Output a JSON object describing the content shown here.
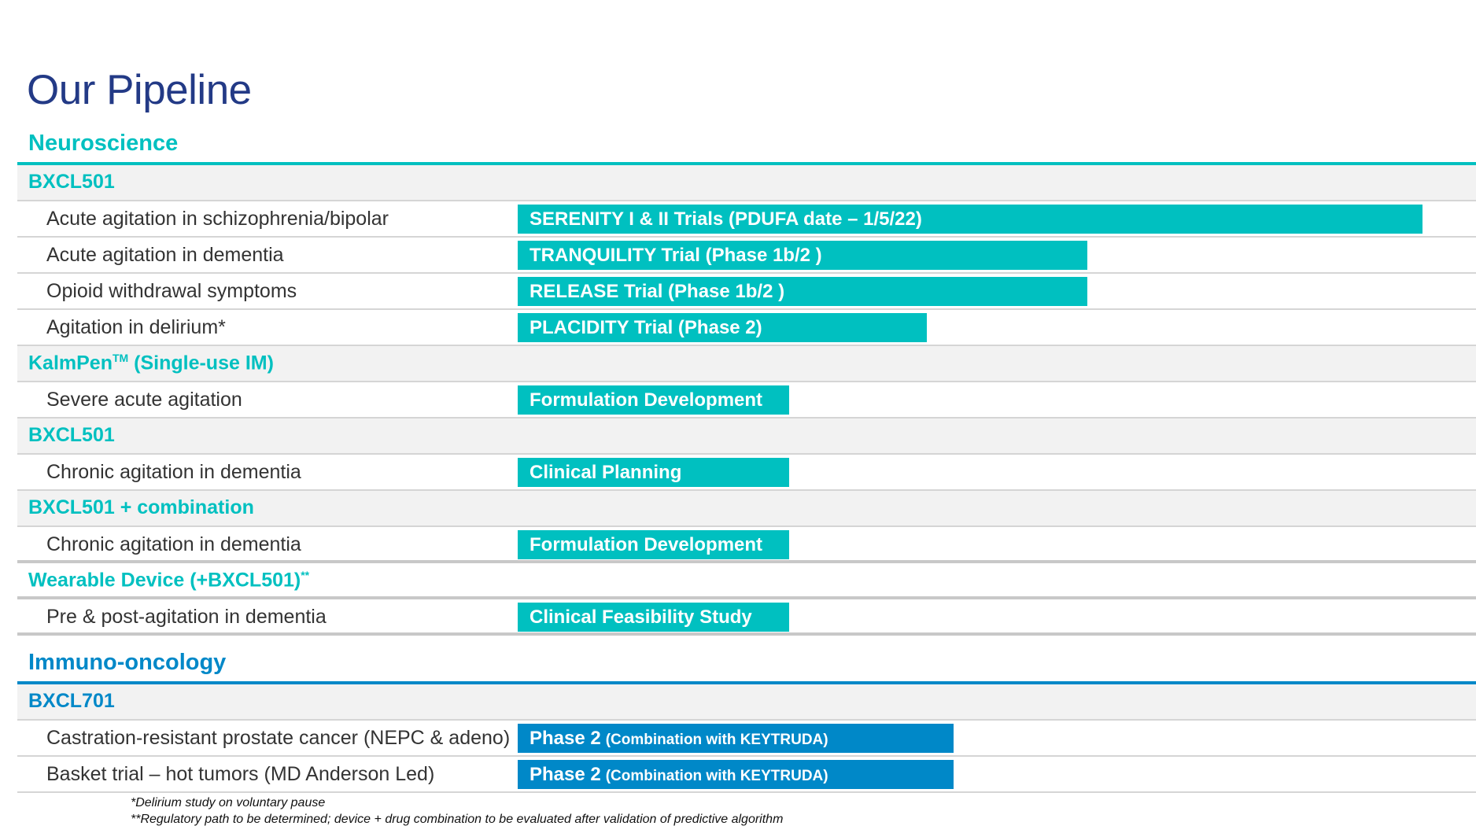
{
  "title": "Our Pipeline",
  "colors": {
    "neuro": "#00c0c0",
    "immuno": "#0088c8",
    "title": "#233a86"
  },
  "neuroscience": {
    "label": "Neuroscience",
    "groups": [
      {
        "name": "BXCL501",
        "indications": [
          {
            "label": "Acute agitation in schizophrenia/bipolar",
            "bar": "SERENITY I & II Trials (PDUFA date – 1/5/22)"
          },
          {
            "label": "Acute agitation in dementia",
            "bar": "TRANQUILITY Trial (Phase 1b/2 )"
          },
          {
            "label": "Opioid withdrawal symptoms",
            "bar": "RELEASE Trial (Phase 1b/2 )"
          },
          {
            "label": "Agitation in delirium*",
            "bar": "PLACIDITY Trial (Phase 2)"
          }
        ]
      },
      {
        "name": "KalmPen",
        "name_sup": "TM",
        "name_suffix": " (Single-use IM)",
        "indications": [
          {
            "label": "Severe acute agitation",
            "bar": "Formulation Development"
          }
        ]
      },
      {
        "name": "BXCL501",
        "indications": [
          {
            "label": "Chronic agitation in dementia",
            "bar": "Clinical Planning"
          }
        ]
      },
      {
        "name": "BXCL501 + combination",
        "indications": [
          {
            "label": "Chronic agitation in dementia",
            "bar": "Formulation Development"
          }
        ]
      },
      {
        "name": "Wearable Device (+BXCL501)",
        "name_sup": "**",
        "indications": [
          {
            "label": "Pre & post-agitation in dementia",
            "bar": "Clinical Feasibility Study"
          }
        ]
      }
    ]
  },
  "immuno_oncology": {
    "label": "Immuno-oncology",
    "groups": [
      {
        "name": "BXCL701",
        "indications": [
          {
            "label": "Castration-resistant prostate cancer (NEPC & adeno)",
            "bar": "Phase 2",
            "bar_note": "(Combination with KEYTRUDA)"
          },
          {
            "label": "Basket trial – hot tumors (MD Anderson Led)",
            "bar": "Phase 2",
            "bar_note": "(Combination with KEYTRUDA)"
          }
        ]
      }
    ]
  },
  "footnotes": [
    "*Delirium study on voluntary pause",
    "**Regulatory path to be determined; device + drug combination to be evaluated after validation of predictive algorithm"
  ]
}
